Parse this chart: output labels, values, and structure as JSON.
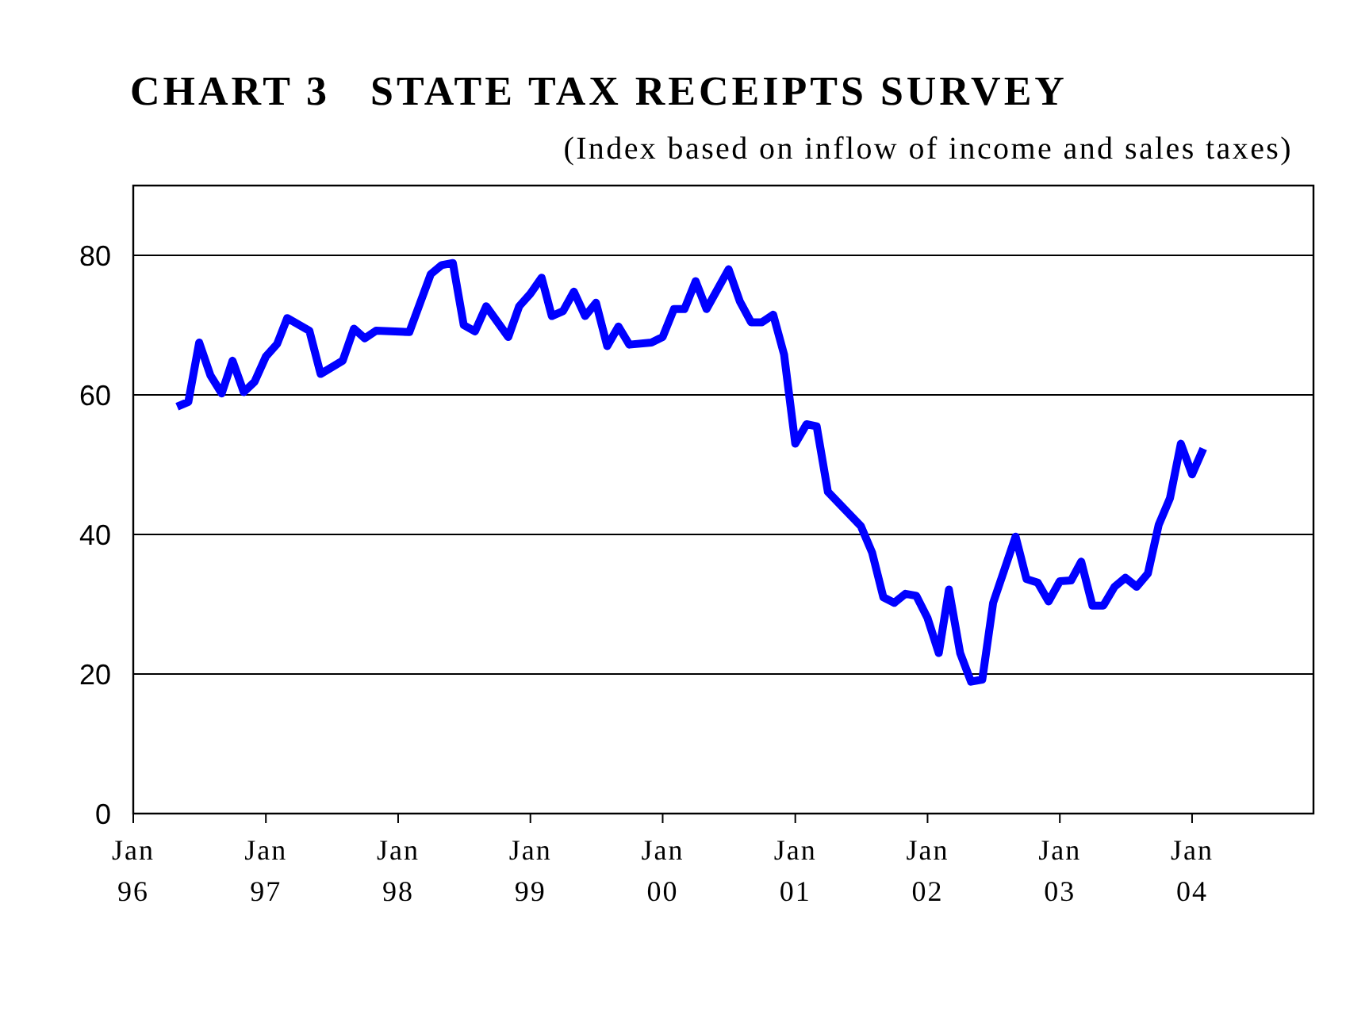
{
  "chart_data": {
    "type": "line",
    "title": "CHART 3   STATE TAX RECEIPTS SURVEY",
    "subtitle": "(Index based on inflow of income and sales taxes)",
    "x": [
      "1996-05",
      "1996-06",
      "1996-07",
      "1996-08",
      "1996-09",
      "1996-10",
      "1996-11",
      "1996-12",
      "1997-01",
      "1997-02",
      "1997-03",
      "1997-05",
      "1997-06",
      "1997-08",
      "1997-09",
      "1997-10",
      "1997-11",
      "1998-02",
      "1998-04",
      "1998-05",
      "1998-06",
      "1998-07",
      "1998-08",
      "1998-09",
      "1998-11",
      "1998-12",
      "1999-01",
      "1999-02",
      "1999-03",
      "1999-04",
      "1999-05",
      "1999-06",
      "1999-07",
      "1999-08",
      "1999-09",
      "1999-10",
      "1999-12",
      "2000-01",
      "2000-02",
      "2000-03",
      "2000-04",
      "2000-05",
      "2000-07",
      "2000-08",
      "2000-09",
      "2000-10",
      "2000-11",
      "2000-12",
      "2001-01",
      "2001-02",
      "2001-03",
      "2001-04",
      "2001-07",
      "2001-08",
      "2001-09",
      "2001-10",
      "2001-11",
      "2001-12",
      "2002-01",
      "2002-02",
      "2002-03",
      "2002-04",
      "2002-05",
      "2002-06",
      "2002-07",
      "2002-09",
      "2002-10",
      "2002-11",
      "2002-12",
      "2003-01",
      "2003-02",
      "2003-03",
      "2003-04",
      "2003-05",
      "2003-06",
      "2003-07",
      "2003-08",
      "2003-09",
      "2003-10",
      "2003-11",
      "2003-12",
      "2004-01",
      "2004-02"
    ],
    "series": [
      {
        "color": "#0000ff",
        "values": [
          58.3,
          59.0,
          67.5,
          62.8,
          60.2,
          64.9,
          60.4,
          61.9,
          65.5,
          67.3,
          71.0,
          69.2,
          63.0,
          64.9,
          69.5,
          68.1,
          69.2,
          69.0,
          77.3,
          78.6,
          78.9,
          70.0,
          69.1,
          72.7,
          68.3,
          72.7,
          74.5,
          76.8,
          71.3,
          72.0,
          74.8,
          71.3,
          73.2,
          67.0,
          69.8,
          67.2,
          67.5,
          68.3,
          72.3,
          72.3,
          76.3,
          72.3,
          78.0,
          73.4,
          70.4,
          70.4,
          71.5,
          65.8,
          53.0,
          55.8,
          55.5,
          46.1,
          41.2,
          37.4,
          31.0,
          30.2,
          31.5,
          31.2,
          28.0,
          23.0,
          32.1,
          23.0,
          18.9,
          19.2,
          30.2,
          39.7,
          33.6,
          33.1,
          30.4,
          33.3,
          33.4,
          36.1,
          29.8,
          29.8,
          32.5,
          33.8,
          32.5,
          34.4,
          41.4,
          45.2,
          53.0,
          48.6,
          52.3
        ]
      }
    ],
    "xlim": [
      "1996-01",
      "2004-12"
    ],
    "xticks": [
      {
        "value": "1996-01",
        "label": "Jan\n96"
      },
      {
        "value": "1997-01",
        "label": "Jan\n97"
      },
      {
        "value": "1998-01",
        "label": "Jan\n98"
      },
      {
        "value": "1999-01",
        "label": "Jan\n99"
      },
      {
        "value": "2000-01",
        "label": "Jan\n00"
      },
      {
        "value": "2001-01",
        "label": "Jan\n01"
      },
      {
        "value": "2002-01",
        "label": "Jan\n02"
      },
      {
        "value": "2003-01",
        "label": "Jan\n03"
      },
      {
        "value": "2004-01",
        "label": "Jan\n04"
      }
    ],
    "ylim": [
      0,
      90
    ],
    "yticks": [
      0,
      20,
      40,
      60,
      80
    ],
    "grid": "y",
    "marker": "none",
    "line_style": "solid"
  }
}
